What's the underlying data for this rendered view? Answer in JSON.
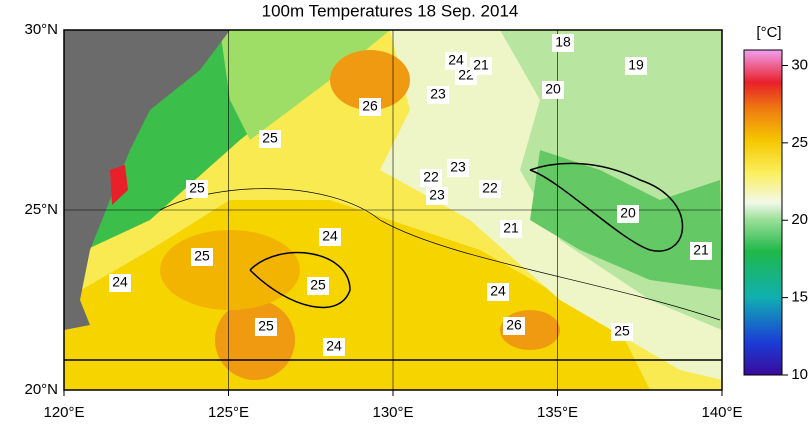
{
  "title": "100m Temperatures  18 Sep. 2014",
  "map": {
    "lon_labels": [
      "120°E",
      "125°E",
      "130°E",
      "135°E",
      "140°E"
    ],
    "lat_labels": [
      "30°N",
      "25°N",
      "20°N"
    ],
    "contour_labels": [
      18,
      19,
      24,
      22,
      21,
      23,
      20,
      26,
      25,
      25,
      23,
      22,
      23,
      22,
      20,
      21,
      24,
      25,
      21,
      25,
      24,
      26,
      25,
      25,
      24,
      24
    ]
  },
  "colorbar": {
    "unit": "[°C]",
    "range": [
      10,
      31
    ],
    "ticks": [
      10,
      15,
      20,
      25,
      30
    ]
  }
}
